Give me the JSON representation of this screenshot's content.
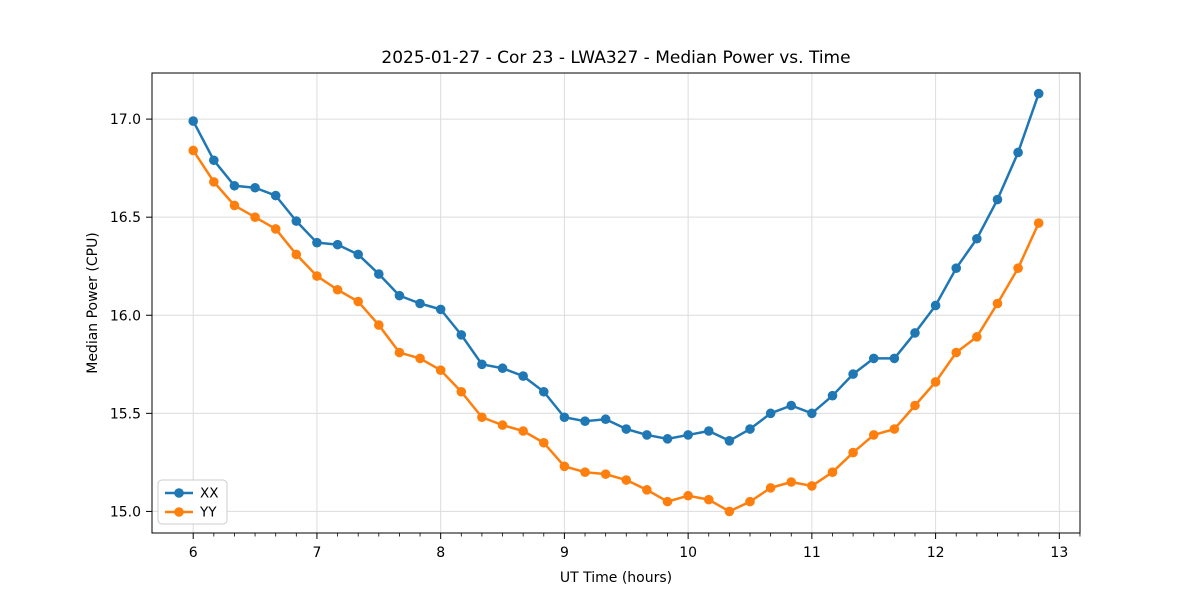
{
  "chart_data": {
    "type": "line",
    "title": "2025-01-27 - Cor 23 - LWA327 - Median Power vs. Time",
    "xlabel": "UT Time (hours)",
    "ylabel": "Median Power (CPU)",
    "grid": true,
    "legend_position": "lower left",
    "xlim": [
      5.667,
      13.167
    ],
    "ylim": [
      14.89,
      17.235
    ],
    "xticks": [
      6,
      7,
      8,
      9,
      10,
      11,
      12,
      13
    ],
    "xtick_labels": [
      "6",
      "7",
      "8",
      "9",
      "10",
      "11",
      "12",
      "13"
    ],
    "yticks": [
      15.0,
      15.5,
      16.0,
      16.5,
      17.0
    ],
    "ytick_labels": [
      "15.0",
      "15.5",
      "16.0",
      "16.5",
      "17.0"
    ],
    "x_minor_step_hours": 0.16667,
    "x": [
      6.0,
      6.1667,
      6.3333,
      6.5,
      6.6667,
      6.8333,
      7.0,
      7.1667,
      7.3333,
      7.5,
      7.6667,
      7.8333,
      8.0,
      8.1667,
      8.3333,
      8.5,
      8.6667,
      8.8333,
      9.0,
      9.1667,
      9.3333,
      9.5,
      9.6667,
      9.8333,
      10.0,
      10.1667,
      10.3333,
      10.5,
      10.6667,
      10.8333,
      11.0,
      11.1667,
      11.3333,
      11.5,
      11.6667,
      11.8333,
      12.0,
      12.1667,
      12.3333,
      12.5,
      12.6667,
      12.8333
    ],
    "series": [
      {
        "name": "XX",
        "color": "#1f77b4",
        "values": [
          16.99,
          16.79,
          16.66,
          16.65,
          16.61,
          16.48,
          16.37,
          16.36,
          16.31,
          16.21,
          16.1,
          16.06,
          16.03,
          15.9,
          15.75,
          15.73,
          15.69,
          15.61,
          15.48,
          15.46,
          15.47,
          15.42,
          15.39,
          15.37,
          15.39,
          15.41,
          15.36,
          15.42,
          15.5,
          15.54,
          15.5,
          15.59,
          15.7,
          15.78,
          15.78,
          15.91,
          16.05,
          16.24,
          16.39,
          16.59,
          16.83,
          17.13
        ]
      },
      {
        "name": "YY",
        "color": "#ff7f0e",
        "values": [
          16.84,
          16.68,
          16.56,
          16.5,
          16.44,
          16.31,
          16.2,
          16.13,
          16.07,
          15.95,
          15.81,
          15.78,
          15.72,
          15.61,
          15.48,
          15.44,
          15.41,
          15.35,
          15.23,
          15.2,
          15.19,
          15.16,
          15.11,
          15.05,
          15.08,
          15.06,
          15.0,
          15.05,
          15.12,
          15.15,
          15.13,
          15.2,
          15.3,
          15.39,
          15.42,
          15.54,
          15.66,
          15.81,
          15.89,
          16.06,
          16.24,
          16.47
        ]
      }
    ],
    "style": {
      "grid_color": "#dcdcdc",
      "spine_color": "#000000",
      "background": "#ffffff",
      "legend_border": "#cccccc"
    }
  }
}
